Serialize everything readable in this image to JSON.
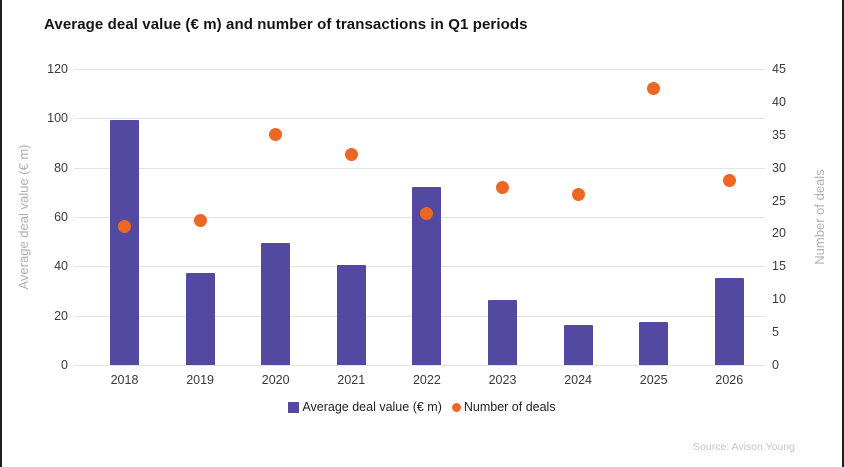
{
  "title": "Average deal value (€ m) and number of transactions in Q1 periods",
  "source": "Source: Avison Young",
  "colors": {
    "bar": "#5449A0",
    "dot": "#ED6724",
    "grid": "#E4E4E4",
    "tick_label": "#3A3A3A",
    "axis_title": "#B0B0B0",
    "source_text": "#C5C5C5",
    "title_text": "#141414",
    "legend_text": "#1F1F1F"
  },
  "legend": {
    "items": [
      {
        "label": "Average deal value (€ m)",
        "marker": "square"
      },
      {
        "label": "Number of deals",
        "marker": "circle"
      }
    ]
  },
  "chart_data": {
    "type": "bar",
    "subtype": "bar-and-scatter-combo-dual-axis",
    "title": "Average deal value (€ m) and number of transactions in Q1 periods",
    "categories": [
      "2018",
      "2019",
      "2020",
      "2021",
      "2022",
      "2023",
      "2024",
      "2025",
      "2026"
    ],
    "series": [
      {
        "name": "Average deal value (€ m)",
        "type": "bar",
        "axis": "left",
        "values": [
          99.5,
          37.3,
          49.3,
          40.5,
          72.3,
          26.4,
          16.3,
          17.5,
          35.3
        ]
      },
      {
        "name": "Number of deals",
        "type": "scatter",
        "axis": "right",
        "values": [
          21,
          22,
          35,
          32,
          23,
          27,
          26,
          42,
          28
        ]
      }
    ],
    "left_axis": {
      "label": "Average deal value (€ m)",
      "min": 0,
      "max": 120,
      "ticks": [
        120,
        100,
        80,
        60,
        40,
        20,
        0
      ]
    },
    "right_axis": {
      "label": "Number of deals",
      "min": 0,
      "max": 45,
      "ticks": [
        45,
        40,
        35,
        30,
        25,
        20,
        15,
        10,
        5,
        0
      ]
    },
    "grid": "horizontal",
    "legend_position": "bottom"
  }
}
